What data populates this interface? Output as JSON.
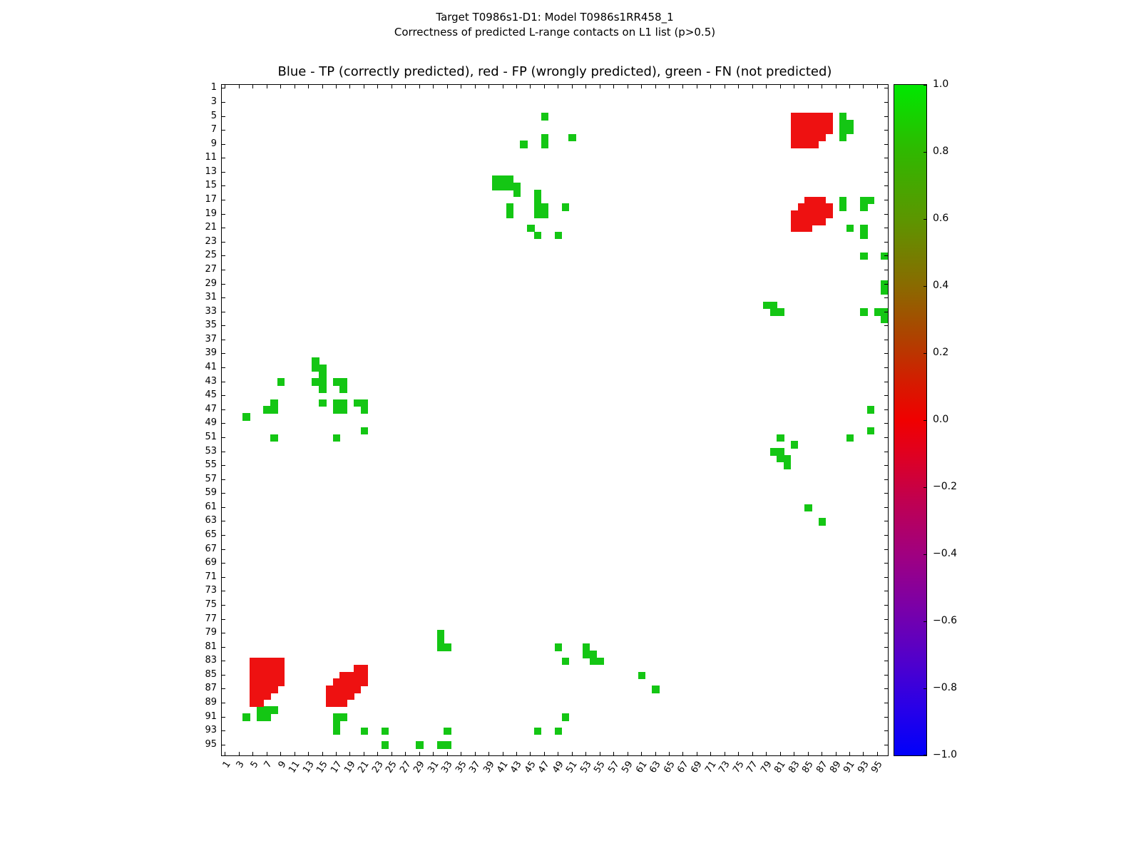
{
  "figure": {
    "suptitle_line1": "Target T0986s1-D1: Model T0986s1RR458_1",
    "suptitle_line2": "Correctness of predicted L-range contacts on L1 list (p>0.5)",
    "axes_title": "Blue - TP (correctly predicted), red - FP (wrongly predicted), green - FN (not predicted)"
  },
  "chart_data": {
    "type": "heatmap",
    "title": "Correctness of predicted L-range contacts on L1 list (p>0.5)",
    "subtitle": "Target T0986s1-D1: Model T0986s1RR458_1",
    "axes_title": "Blue - TP (correctly predicted), red - FP (wrongly predicted), green - FN (not predicted)",
    "xlabel": "",
    "ylabel": "",
    "x_range": [
      1,
      96
    ],
    "y_range": [
      1,
      96
    ],
    "grid": false,
    "legend": {
      "TP": "blue (correctly predicted)",
      "FP": "red (wrongly predicted)",
      "FN": "green (not predicted)"
    },
    "colors": {
      "TP": "#0000f0",
      "FP": "#ee1111",
      "FN": "#14c614"
    },
    "x_ticks": [
      "1",
      "3",
      "5",
      "7",
      "9",
      "11",
      "13",
      "15",
      "17",
      "19",
      "21",
      "23",
      "25",
      "27",
      "29",
      "31",
      "33",
      "35",
      "37",
      "39",
      "41",
      "43",
      "45",
      "47",
      "49",
      "51",
      "53",
      "55",
      "57",
      "59",
      "61",
      "63",
      "65",
      "67",
      "69",
      "71",
      "73",
      "75",
      "77",
      "79",
      "81",
      "83",
      "85",
      "87",
      "89",
      "91",
      "93",
      "95"
    ],
    "y_ticks": [
      "1",
      "3",
      "5",
      "7",
      "9",
      "11",
      "13",
      "15",
      "17",
      "19",
      "21",
      "23",
      "25",
      "27",
      "29",
      "31",
      "33",
      "35",
      "37",
      "39",
      "41",
      "43",
      "45",
      "47",
      "49",
      "51",
      "53",
      "55",
      "57",
      "59",
      "61",
      "63",
      "65",
      "67",
      "69",
      "71",
      "73",
      "75",
      "77",
      "79",
      "81",
      "83",
      "85",
      "87",
      "89",
      "91",
      "93",
      "95"
    ],
    "colorbar": {
      "ticks": [
        "1.0",
        "0.8",
        "0.6",
        "0.4",
        "0.2",
        "0.0",
        "−0.2",
        "−0.4",
        "−0.6",
        "−0.8",
        "−1.0"
      ],
      "range": [
        -1.0,
        1.0
      ],
      "gradient": [
        {
          "pos": 0,
          "color": "#00e800"
        },
        {
          "pos": 10,
          "color": "#30b800"
        },
        {
          "pos": 20,
          "color": "#5c9600"
        },
        {
          "pos": 30,
          "color": "#8a6a00"
        },
        {
          "pos": 38,
          "color": "#b04000"
        },
        {
          "pos": 45,
          "color": "#d81800"
        },
        {
          "pos": 50,
          "color": "#f00000"
        },
        {
          "pos": 55,
          "color": "#e00020"
        },
        {
          "pos": 62,
          "color": "#c00050"
        },
        {
          "pos": 70,
          "color": "#a00080"
        },
        {
          "pos": 78,
          "color": "#7a00a8"
        },
        {
          "pos": 86,
          "color": "#5000cc"
        },
        {
          "pos": 93,
          "color": "#2800e8"
        },
        {
          "pos": 100,
          "color": "#0000fa"
        }
      ]
    },
    "cell_format": "[x_residue, y_residue]",
    "cells": {
      "TP": [],
      "FN": [
        [
          47,
          5
        ],
        [
          44,
          9
        ],
        [
          47,
          8
        ],
        [
          47,
          9
        ],
        [
          51,
          8
        ],
        [
          90,
          5
        ],
        [
          90,
          6
        ],
        [
          91,
          6
        ],
        [
          90,
          7
        ],
        [
          91,
          7
        ],
        [
          90,
          8
        ],
        [
          40,
          14
        ],
        [
          41,
          14
        ],
        [
          42,
          14
        ],
        [
          40,
          15
        ],
        [
          41,
          15
        ],
        [
          42,
          15
        ],
        [
          43,
          15
        ],
        [
          43,
          16
        ],
        [
          46,
          16
        ],
        [
          46,
          17
        ],
        [
          42,
          18
        ],
        [
          46,
          18
        ],
        [
          47,
          18
        ],
        [
          50,
          18
        ],
        [
          42,
          19
        ],
        [
          46,
          19
        ],
        [
          47,
          19
        ],
        [
          45,
          21
        ],
        [
          46,
          22
        ],
        [
          49,
          22
        ],
        [
          90,
          17
        ],
        [
          93,
          17
        ],
        [
          94,
          17
        ],
        [
          90,
          18
        ],
        [
          93,
          18
        ],
        [
          91,
          21
        ],
        [
          93,
          21
        ],
        [
          93,
          22
        ],
        [
          93,
          25
        ],
        [
          96,
          25
        ],
        [
          96,
          29
        ],
        [
          96,
          30
        ],
        [
          79,
          32
        ],
        [
          80,
          32
        ],
        [
          80,
          33
        ],
        [
          81,
          33
        ],
        [
          93,
          33
        ],
        [
          95,
          33
        ],
        [
          96,
          33
        ],
        [
          96,
          34
        ],
        [
          14,
          40
        ],
        [
          14,
          41
        ],
        [
          15,
          41
        ],
        [
          15,
          42
        ],
        [
          9,
          43
        ],
        [
          14,
          43
        ],
        [
          15,
          43
        ],
        [
          17,
          43
        ],
        [
          18,
          43
        ],
        [
          15,
          44
        ],
        [
          18,
          44
        ],
        [
          15,
          46
        ],
        [
          17,
          46
        ],
        [
          18,
          46
        ],
        [
          20,
          46
        ],
        [
          21,
          46
        ],
        [
          8,
          46
        ],
        [
          7,
          47
        ],
        [
          8,
          47
        ],
        [
          17,
          47
        ],
        [
          18,
          47
        ],
        [
          21,
          47
        ],
        [
          4,
          48
        ],
        [
          21,
          50
        ],
        [
          8,
          51
        ],
        [
          17,
          51
        ],
        [
          94,
          47
        ],
        [
          94,
          50
        ],
        [
          81,
          51
        ],
        [
          91,
          51
        ],
        [
          83,
          52
        ],
        [
          80,
          53
        ],
        [
          81,
          53
        ],
        [
          81,
          54
        ],
        [
          82,
          54
        ],
        [
          82,
          55
        ],
        [
          85,
          61
        ],
        [
          87,
          63
        ],
        [
          32,
          79
        ],
        [
          32,
          80
        ],
        [
          32,
          81
        ],
        [
          33,
          81
        ],
        [
          49,
          81
        ],
        [
          53,
          81
        ],
        [
          53,
          82
        ],
        [
          54,
          82
        ],
        [
          50,
          83
        ],
        [
          54,
          83
        ],
        [
          55,
          83
        ],
        [
          61,
          85
        ],
        [
          63,
          87
        ],
        [
          6,
          90
        ],
        [
          7,
          90
        ],
        [
          8,
          90
        ],
        [
          4,
          91
        ],
        [
          6,
          91
        ],
        [
          7,
          91
        ],
        [
          17,
          91
        ],
        [
          18,
          91
        ],
        [
          50,
          91
        ],
        [
          17,
          92
        ],
        [
          17,
          93
        ],
        [
          21,
          93
        ],
        [
          24,
          93
        ],
        [
          33,
          93
        ],
        [
          46,
          93
        ],
        [
          49,
          93
        ],
        [
          24,
          95
        ],
        [
          29,
          95
        ],
        [
          32,
          95
        ],
        [
          33,
          95
        ]
      ],
      "FP": [
        [
          83,
          5
        ],
        [
          84,
          5
        ],
        [
          85,
          5
        ],
        [
          86,
          5
        ],
        [
          87,
          5
        ],
        [
          88,
          5
        ],
        [
          83,
          6
        ],
        [
          84,
          6
        ],
        [
          85,
          6
        ],
        [
          86,
          6
        ],
        [
          87,
          6
        ],
        [
          88,
          6
        ],
        [
          83,
          7
        ],
        [
          84,
          7
        ],
        [
          85,
          7
        ],
        [
          86,
          7
        ],
        [
          87,
          7
        ],
        [
          88,
          7
        ],
        [
          83,
          8
        ],
        [
          84,
          8
        ],
        [
          85,
          8
        ],
        [
          86,
          8
        ],
        [
          87,
          8
        ],
        [
          83,
          9
        ],
        [
          84,
          9
        ],
        [
          85,
          9
        ],
        [
          86,
          9
        ],
        [
          85,
          17
        ],
        [
          86,
          17
        ],
        [
          87,
          17
        ],
        [
          84,
          18
        ],
        [
          85,
          18
        ],
        [
          86,
          18
        ],
        [
          87,
          18
        ],
        [
          88,
          18
        ],
        [
          83,
          19
        ],
        [
          84,
          19
        ],
        [
          85,
          19
        ],
        [
          86,
          19
        ],
        [
          87,
          19
        ],
        [
          88,
          19
        ],
        [
          83,
          20
        ],
        [
          84,
          20
        ],
        [
          85,
          20
        ],
        [
          86,
          20
        ],
        [
          87,
          20
        ],
        [
          83,
          21
        ],
        [
          84,
          21
        ],
        [
          85,
          21
        ],
        [
          5,
          83
        ],
        [
          6,
          83
        ],
        [
          7,
          83
        ],
        [
          8,
          83
        ],
        [
          9,
          83
        ],
        [
          5,
          84
        ],
        [
          6,
          84
        ],
        [
          7,
          84
        ],
        [
          8,
          84
        ],
        [
          9,
          84
        ],
        [
          5,
          85
        ],
        [
          6,
          85
        ],
        [
          7,
          85
        ],
        [
          8,
          85
        ],
        [
          9,
          85
        ],
        [
          5,
          86
        ],
        [
          6,
          86
        ],
        [
          7,
          86
        ],
        [
          8,
          86
        ],
        [
          9,
          86
        ],
        [
          5,
          87
        ],
        [
          6,
          87
        ],
        [
          7,
          87
        ],
        [
          8,
          87
        ],
        [
          5,
          88
        ],
        [
          6,
          88
        ],
        [
          7,
          88
        ],
        [
          5,
          89
        ],
        [
          6,
          89
        ],
        [
          20,
          84
        ],
        [
          21,
          84
        ],
        [
          18,
          85
        ],
        [
          19,
          85
        ],
        [
          20,
          85
        ],
        [
          21,
          85
        ],
        [
          17,
          86
        ],
        [
          18,
          86
        ],
        [
          19,
          86
        ],
        [
          20,
          86
        ],
        [
          21,
          86
        ],
        [
          16,
          87
        ],
        [
          17,
          87
        ],
        [
          18,
          87
        ],
        [
          19,
          87
        ],
        [
          20,
          87
        ],
        [
          16,
          88
        ],
        [
          17,
          88
        ],
        [
          18,
          88
        ],
        [
          19,
          88
        ],
        [
          16,
          89
        ],
        [
          17,
          89
        ],
        [
          18,
          89
        ]
      ]
    }
  }
}
